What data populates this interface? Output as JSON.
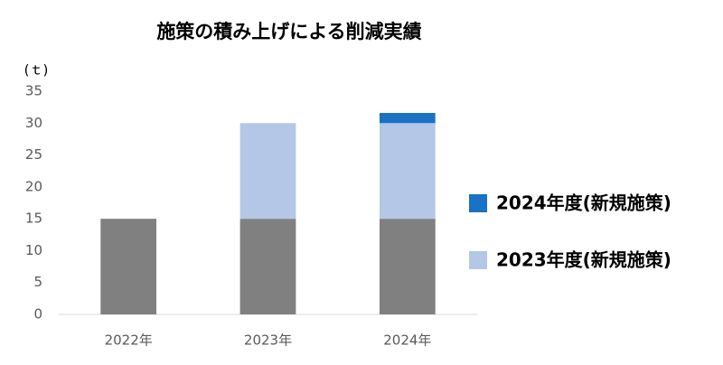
{
  "chart_data": {
    "type": "stacked-bar",
    "title": "施策の積み上げによる削減実績",
    "y_unit": "(ｔ)",
    "categories": [
      "2022年",
      "2023年",
      "2024年"
    ],
    "series": [
      {
        "color": "#808080",
        "values": [
          15,
          15,
          15
        ]
      },
      {
        "name": "2023年度(新規施策)",
        "color": "#b4c7e7",
        "values": [
          null,
          15,
          15
        ]
      },
      {
        "name": "2024年度(新規施策)",
        "color": "#1a72c4",
        "values": [
          null,
          null,
          1.6
        ]
      }
    ],
    "ylim": [
      0,
      35
    ],
    "yticks": [
      0,
      5,
      10,
      15,
      20,
      25,
      30,
      35
    ],
    "grid": false,
    "legend": "right"
  }
}
